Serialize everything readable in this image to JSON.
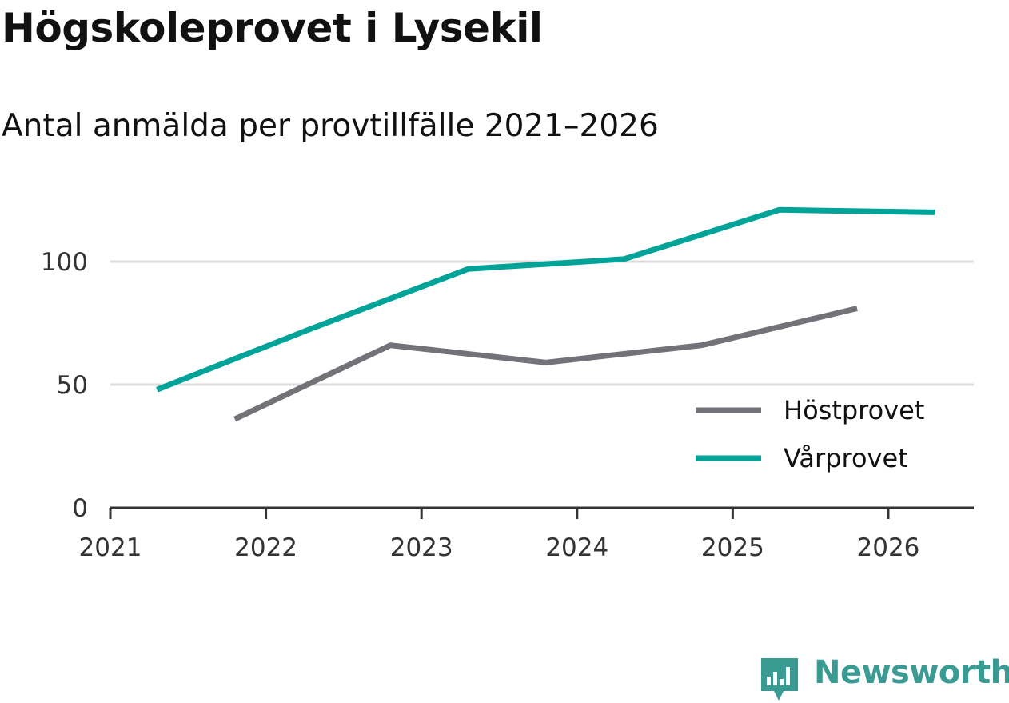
{
  "chart_data": {
    "type": "line",
    "title": "Högskoleprovet i Lysekil",
    "subtitle": "Antal anmälda per provtillfälle 2021–2026",
    "xlabel": "",
    "ylabel": "",
    "xlim": [
      2021,
      2026.55
    ],
    "ylim": [
      0,
      125
    ],
    "x_ticks": [
      "2021",
      "2022",
      "2023",
      "2024",
      "2025",
      "2026"
    ],
    "y_ticks": [
      "0",
      "50",
      "100"
    ],
    "y_gridlines": [
      50,
      100
    ],
    "legend_position": "bottom-right",
    "series": [
      {
        "name": "Höstprovet",
        "color": "#737278",
        "x": [
          2021.8,
          2022.8,
          2023.8,
          2024.8,
          2025.8
        ],
        "y": [
          36,
          66,
          59,
          66,
          81
        ]
      },
      {
        "name": "Vårprovet",
        "color": "#00a398",
        "x": [
          2021.3,
          2022.3,
          2023.3,
          2024.3,
          2025.3,
          2026.3
        ],
        "y": [
          48,
          73,
          97,
          101,
          121,
          120
        ]
      }
    ]
  },
  "brand": {
    "name": "Newsworthy",
    "color": "#3a9b93",
    "icon": "newsworthy-logo-icon"
  }
}
